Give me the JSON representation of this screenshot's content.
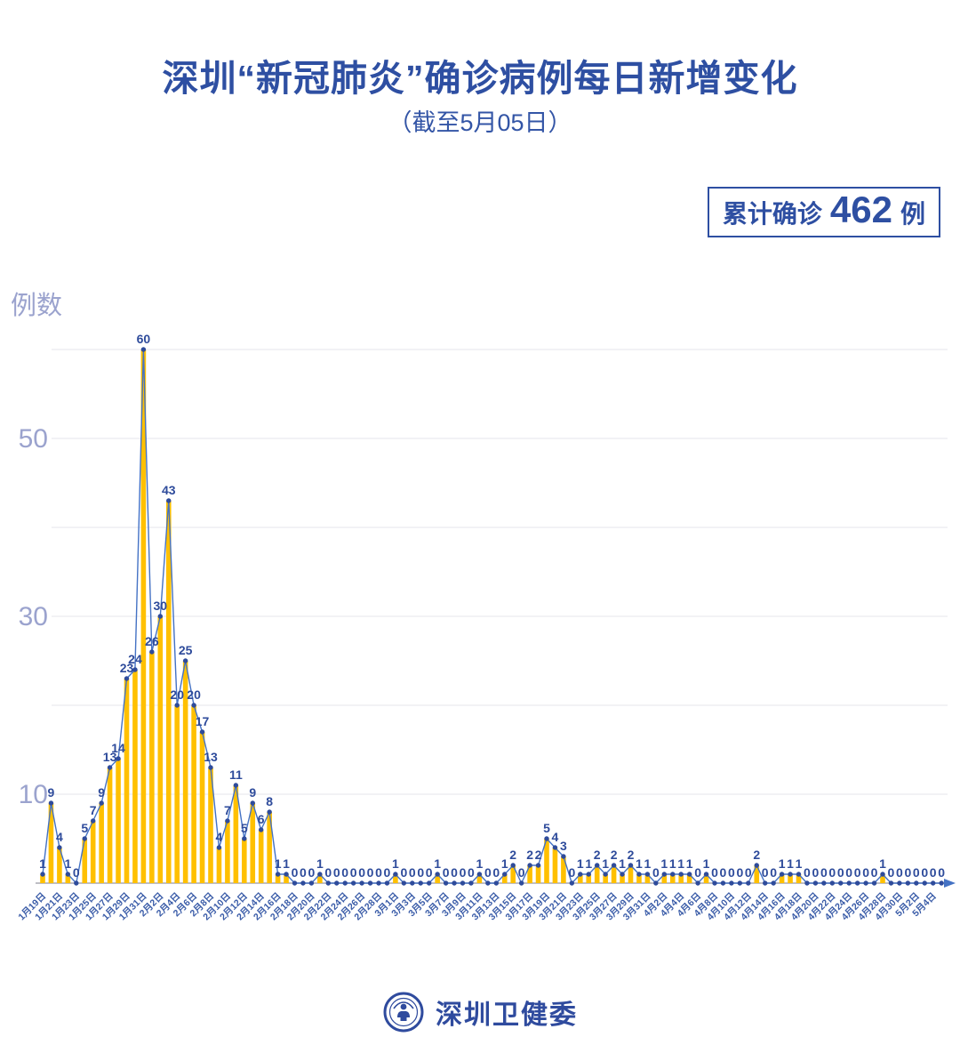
{
  "header": {
    "title": "深圳“新冠肺炎”确诊病例每日新增变化",
    "subtitle": "（截至5月05日）"
  },
  "summary_badge": {
    "prefix": "累计确诊",
    "value": "462",
    "unit": "例"
  },
  "y_axis_title": "例数",
  "footer": {
    "org_name": "深圳卫健委"
  },
  "colors": {
    "title": "#2E4FA2",
    "bar": "#FFC000",
    "line": "#4472C4",
    "marker": "#2E4B9B",
    "value_label": "#2E4B9B",
    "grid": "#EAEAEF",
    "y_tick": "#9BA3CE",
    "x_tick": "#3A5CA8",
    "axis": "#A9A9B2",
    "arrow": "#4472C4"
  },
  "chart_data": {
    "type": "bar",
    "line_overlay": true,
    "title": "深圳“新冠肺炎”确诊病例每日新增变化",
    "subtitle": "（截至5月05日）",
    "ylabel": "例数",
    "ylim": [
      0,
      60
    ],
    "y_gridlines": [
      10,
      20,
      30,
      40,
      50,
      60
    ],
    "y_ticks_labeled": [
      10,
      30,
      50
    ],
    "x_tick_every": 2,
    "point_labels": true,
    "total_label": "累计确诊 462 例",
    "categories": [
      "1月19日",
      "1月20日",
      "1月21日",
      "1月22日",
      "1月23日",
      "1月24日",
      "1月25日",
      "1月26日",
      "1月27日",
      "1月28日",
      "1月29日",
      "1月30日",
      "1月31日",
      "2月1日",
      "2月2日",
      "2月3日",
      "2月4日",
      "2月5日",
      "2月6日",
      "2月7日",
      "2月8日",
      "2月9日",
      "2月10日",
      "2月11日",
      "2月12日",
      "2月13日",
      "2月14日",
      "2月15日",
      "2月16日",
      "2月17日",
      "2月18日",
      "2月19日",
      "2月20日",
      "2月21日",
      "2月22日",
      "2月23日",
      "2月24日",
      "2月25日",
      "2月26日",
      "2月27日",
      "2月28日",
      "2月29日",
      "3月1日",
      "3月2日",
      "3月3日",
      "3月4日",
      "3月5日",
      "3月6日",
      "3月7日",
      "3月8日",
      "3月9日",
      "3月10日",
      "3月11日",
      "3月12日",
      "3月13日",
      "3月14日",
      "3月15日",
      "3月16日",
      "3月17日",
      "3月18日",
      "3月19日",
      "3月20日",
      "3月21日",
      "3月22日",
      "3月23日",
      "3月24日",
      "3月25日",
      "3月26日",
      "3月27日",
      "3月28日",
      "3月29日",
      "3月30日",
      "3月31日",
      "4月1日",
      "4月2日",
      "4月3日",
      "4月4日",
      "4月5日",
      "4月6日",
      "4月7日",
      "4月8日",
      "4月9日",
      "4月10日",
      "4月11日",
      "4月12日",
      "4月13日",
      "4月14日",
      "4月15日",
      "4月16日",
      "4月17日",
      "4月18日",
      "4月19日",
      "4月20日",
      "4月21日",
      "4月22日",
      "4月23日",
      "4月24日",
      "4月25日",
      "4月26日",
      "4月27日",
      "4月28日",
      "4月29日",
      "4月30日",
      "5月1日",
      "5月2日",
      "5月3日",
      "5月4日",
      "5月5日"
    ],
    "values": [
      1,
      9,
      4,
      1,
      0,
      5,
      7,
      9,
      13,
      14,
      23,
      24,
      60,
      26,
      30,
      43,
      20,
      25,
      20,
      17,
      13,
      4,
      7,
      11,
      5,
      9,
      6,
      8,
      1,
      1,
      0,
      0,
      0,
      1,
      0,
      0,
      0,
      0,
      0,
      0,
      0,
      0,
      1,
      0,
      0,
      0,
      0,
      1,
      0,
      0,
      0,
      0,
      1,
      0,
      0,
      1,
      2,
      0,
      2,
      2,
      5,
      4,
      3,
      0,
      1,
      1,
      2,
      1,
      2,
      1,
      2,
      1,
      1,
      0,
      1,
      1,
      1,
      1,
      0,
      1,
      0,
      0,
      0,
      0,
      0,
      2,
      0,
      0,
      1,
      1,
      1,
      0,
      0,
      0,
      0,
      0,
      0,
      0,
      0,
      0,
      1,
      0,
      0,
      0,
      0,
      0,
      0,
      0
    ],
    "total": 462
  }
}
